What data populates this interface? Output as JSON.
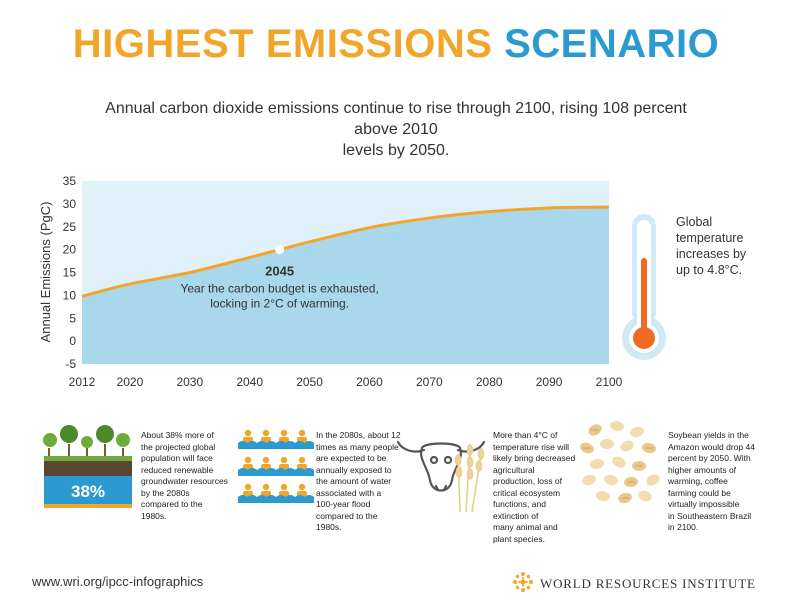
{
  "header": {
    "title_part1": "HIGHEST EMISSIONS",
    "title_part2": "SCENARIO",
    "subtitle_line1": "Annual carbon dioxide emissions continue to rise through 2100, rising 108 percent above 2010",
    "subtitle_line2": "levels by 2050."
  },
  "colors": {
    "orange": "#f3a52a",
    "blue": "#2b9ad1",
    "area_fill": "#a9d8ec",
    "bg_fill": "#dff0f8",
    "thermo_red": "#ef6b24"
  },
  "chart_data": {
    "type": "area",
    "title": "",
    "xlabel": "",
    "ylabel": "Annual Emissions (PgC)",
    "ylim": [
      -5,
      35
    ],
    "xlim": [
      2012,
      2100
    ],
    "yticks": [
      "35",
      "30",
      "25",
      "20",
      "15",
      "10",
      "5",
      "0",
      "-5"
    ],
    "xticks": [
      "2012",
      "2020",
      "2030",
      "2040",
      "2050",
      "2060",
      "2070",
      "2080",
      "2090",
      "2100"
    ],
    "x": [
      2012,
      2020,
      2030,
      2040,
      2045,
      2050,
      2060,
      2070,
      2080,
      2090,
      2100
    ],
    "values": [
      9.8,
      12.5,
      15.0,
      18.3,
      20.0,
      21.7,
      24.8,
      26.9,
      28.3,
      29.1,
      29.3
    ],
    "annotation": {
      "x": 2045,
      "y": 20,
      "year": "2045",
      "line1": "Year the carbon budget is exhausted,",
      "line2": "locking in 2°C of warming."
    }
  },
  "thermometer": {
    "line1": "Global",
    "line2": "temperature",
    "line3": "increases by",
    "line4": "up to 4.8°C.",
    "level": 0.78
  },
  "infos": [
    {
      "badge": "38%",
      "lines": [
        "About 38% more of",
        "the projected global",
        "population will face",
        "reduced renewable",
        "groundwater resources",
        "by the 2080s",
        "compared to the",
        "1980s."
      ]
    },
    {
      "lines": [
        "In the 2080s, about 12",
        "times as many people",
        "are expected to be",
        "annually exposed to",
        "the amount of water",
        "associated with a",
        "100-year flood",
        "compared to the",
        "1980s."
      ]
    },
    {
      "lines": [
        "More than 4°C of",
        "temperature rise will",
        "likely bring decreased",
        "agricultural",
        "production, loss of",
        "critical ecosystem",
        "functions, and",
        "extinction of",
        "many animal and",
        "plant species."
      ]
    },
    {
      "lines": [
        "Soybean yields in the",
        "Amazon would drop 44",
        "percent by 2050. With",
        "higher amounts  of",
        "warming, coffee",
        "farming could be",
        "virtually impossible",
        "in Southeastern Brazil",
        "in 2100."
      ]
    }
  ],
  "footer": {
    "url": "www.wri.org/ipcc-infographics",
    "org": "WORLD RESOURCES INSTITUTE"
  }
}
